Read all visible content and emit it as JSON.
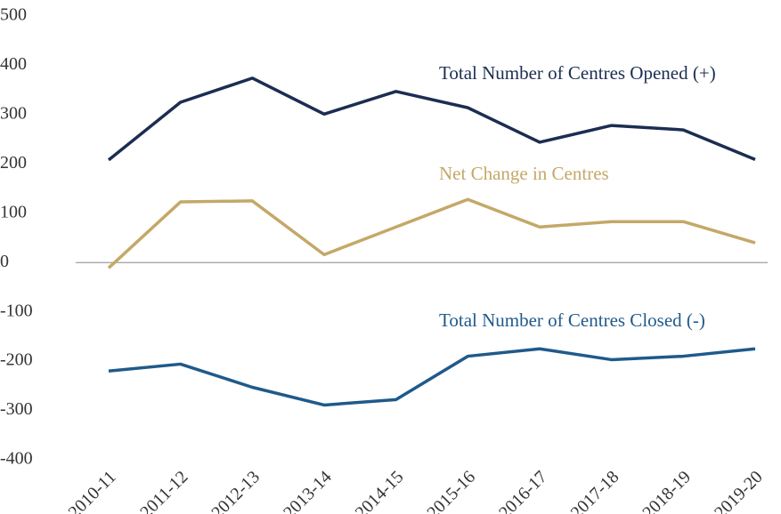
{
  "chart_data": {
    "type": "line",
    "categories": [
      "2010-11",
      "2011-12",
      "2012-13",
      "2013-14",
      "2014-15",
      "2015-16",
      "2016-17",
      "2017-18",
      "2018-19",
      "2019-20"
    ],
    "series": [
      {
        "name": "Total Number of Centres Opened (+)",
        "color": "#1c2d52",
        "values": [
          208,
          325,
          374,
          301,
          347,
          314,
          244,
          278,
          269,
          209
        ]
      },
      {
        "name": "Net Change in Centres",
        "color": "#c4a868",
        "values": [
          -11,
          123,
          125,
          16,
          72,
          128,
          72,
          83,
          83,
          40
        ]
      },
      {
        "name": "Total Number of Centres Closed (-)",
        "color": "#1f5a8a",
        "values": [
          -220,
          -206,
          -253,
          -289,
          -278,
          -190,
          -175,
          -197,
          -190,
          -175
        ]
      }
    ],
    "ylim": [
      -400,
      500
    ],
    "yticks": [
      -400,
      -300,
      -200,
      -100,
      0,
      100,
      200,
      300,
      400,
      500
    ],
    "grid": false
  }
}
